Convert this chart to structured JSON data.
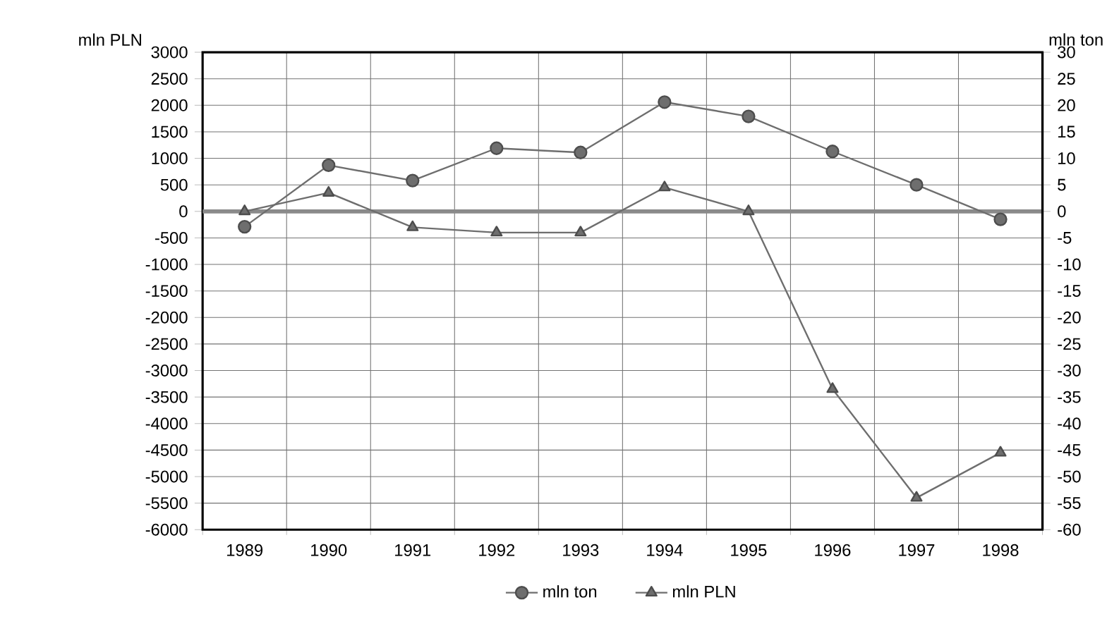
{
  "chart_data": {
    "type": "line",
    "categories": [
      "1989",
      "1990",
      "1991",
      "1992",
      "1993",
      "1994",
      "1995",
      "1996",
      "1997",
      "1998"
    ],
    "series": [
      {
        "name": "mln ton",
        "color": "#6e6e6e",
        "marker": "circle",
        "axis": "y2",
        "values": [
          -2.9,
          8.7,
          5.8,
          11.9,
          11.1,
          20.6,
          17.9,
          11.3,
          5,
          -1.5
        ]
      },
      {
        "name": "mln PLN",
        "color": "#6e6e6e",
        "marker": "triangle",
        "values": [
          0,
          350,
          -300,
          -400,
          -400,
          450,
          0,
          -3350,
          -5400,
          -4550
        ]
      }
    ],
    "ylabel": "mln PLN",
    "y2label": "mln ton",
    "ylim": [
      -6000,
      3000
    ],
    "yticks": [
      -6000,
      -5500,
      -5000,
      -4500,
      -4000,
      -3500,
      -3000,
      -2500,
      -2000,
      -1500,
      -1000,
      -500,
      0,
      500,
      1000,
      1500,
      2000,
      2500,
      3000
    ],
    "y2lim": [
      -60,
      30
    ],
    "y2ticks": [
      -60,
      -55,
      -50,
      -45,
      -40,
      -35,
      -30,
      -25,
      -20,
      -15,
      -10,
      -5,
      0,
      5,
      10,
      15,
      20,
      25,
      30
    ],
    "ref_lines": [
      {
        "axis": "y",
        "value": 0,
        "color": "#8a8a8a"
      }
    ],
    "grid": true,
    "legend": "bottom",
    "line_style": "solid"
  }
}
